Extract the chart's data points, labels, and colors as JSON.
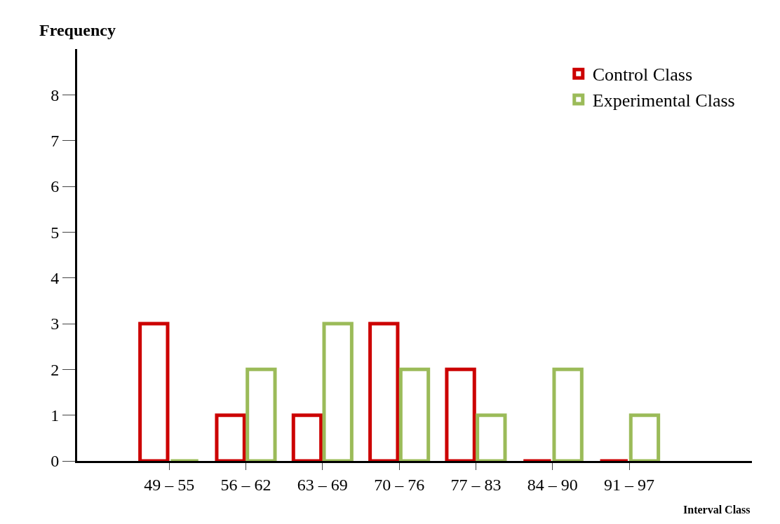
{
  "chart_data": {
    "type": "bar",
    "xlabel": "Interval Class",
    "ylabel": "Frequency",
    "categories": [
      "49 – 55",
      "56 – 62",
      "63 – 69",
      "70 – 76",
      "77 – 83",
      "84 – 90",
      "91 – 97"
    ],
    "series": [
      {
        "name": "Control Class",
        "color": "#cc0000",
        "values": [
          3,
          1,
          1,
          3,
          2,
          0,
          0
        ]
      },
      {
        "name": "Experimental Class",
        "color": "#9bbb59",
        "values": [
          0,
          2,
          3,
          2,
          1,
          2,
          1
        ]
      }
    ],
    "ylim": [
      0,
      9
    ],
    "yticks": [
      0,
      1,
      2,
      3,
      4,
      5,
      6,
      7,
      8
    ],
    "legend": "top right"
  }
}
